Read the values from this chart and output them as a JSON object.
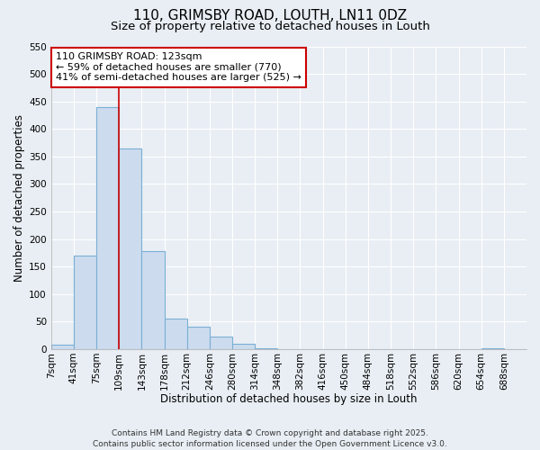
{
  "title": "110, GRIMSBY ROAD, LOUTH, LN11 0DZ",
  "subtitle": "Size of property relative to detached houses in Louth",
  "xlabel": "Distribution of detached houses by size in Louth",
  "ylabel": "Number of detached properties",
  "bar_labels": [
    "7sqm",
    "41sqm",
    "75sqm",
    "109sqm",
    "143sqm",
    "178sqm",
    "212sqm",
    "246sqm",
    "280sqm",
    "314sqm",
    "348sqm",
    "382sqm",
    "416sqm",
    "450sqm",
    "484sqm",
    "518sqm",
    "552sqm",
    "586sqm",
    "620sqm",
    "654sqm",
    "688sqm"
  ],
  "bar_values": [
    8,
    170,
    440,
    365,
    178,
    56,
    40,
    22,
    10,
    2,
    0,
    0,
    0,
    0,
    0,
    0,
    0,
    0,
    0,
    2,
    0
  ],
  "bar_color": "#ccdcee",
  "bar_edge_color": "#7bafd4",
  "ylim": [
    0,
    550
  ],
  "yticks": [
    0,
    50,
    100,
    150,
    200,
    250,
    300,
    350,
    400,
    450,
    500,
    550
  ],
  "vline_x": 3,
  "vline_color": "#cc0000",
  "annotation_line1": "110 GRIMSBY ROAD: 123sqm",
  "annotation_line2": "← 59% of detached houses are smaller (770)",
  "annotation_line3": "41% of semi-detached houses are larger (525) →",
  "annotation_box_color": "#ffffff",
  "annotation_box_edge": "#cc0000",
  "footer_line1": "Contains HM Land Registry data © Crown copyright and database right 2025.",
  "footer_line2": "Contains public sector information licensed under the Open Government Licence v3.0.",
  "background_color": "#e8eef4",
  "grid_color": "#ffffff",
  "title_fontsize": 11,
  "subtitle_fontsize": 9.5,
  "axis_label_fontsize": 8.5,
  "tick_fontsize": 7.5,
  "annotation_fontsize": 8,
  "footer_fontsize": 6.5
}
